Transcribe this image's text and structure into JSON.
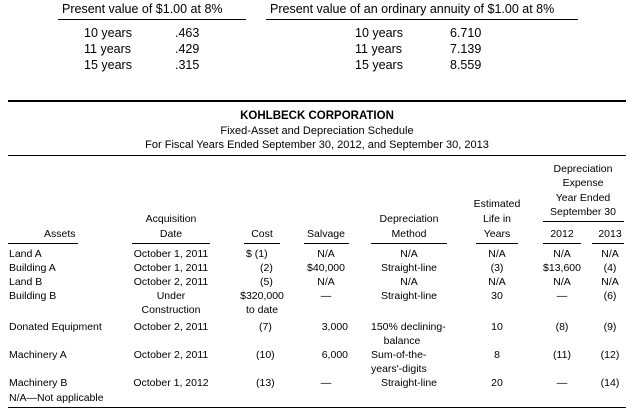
{
  "pv_table": {
    "title": "Present value of $1.00 at 8%",
    "rows": [
      {
        "years": "10 years",
        "value": ".463"
      },
      {
        "years": "11 years",
        "value": ".429"
      },
      {
        "years": "15 years",
        "value": ".315"
      }
    ]
  },
  "annuity_table": {
    "title": "Present value of an ordinary annuity of $1.00 at 8%",
    "rows": [
      {
        "years": "10 years",
        "value": "6.710"
      },
      {
        "years": "11 years",
        "value": "7.139"
      },
      {
        "years": "15 years",
        "value": "8.559"
      }
    ]
  },
  "schedule": {
    "company": "KOHLBECK CORPORATION",
    "title": "Fixed-Asset and Depreciation Schedule",
    "period": "For Fiscal Years Ended September 30, 2012, and September 30, 2013",
    "headers": {
      "assets": "Assets",
      "acq_1": "Acquisition",
      "acq_2": "Date",
      "cost": "Cost",
      "salvage": "Salvage",
      "method_1": "Depreciation",
      "method_2": "Method",
      "life_1": "Estimated",
      "life_2": "Life in",
      "life_3": "Years",
      "dep_1": "Depreciation",
      "dep_2": "Expense",
      "dep_3": "Year Ended",
      "dep_4": "September 30",
      "y2012": "2012",
      "y2013": "2013"
    },
    "rows": [
      {
        "asset": "Land A",
        "date": "October 1, 2011",
        "cost": "$ (1)",
        "salvage": "N/A",
        "method": "N/A",
        "life": "N/A",
        "d2012": "N/A",
        "d2013": "N/A"
      },
      {
        "asset": "Building A",
        "date": "October 1, 2011",
        "cost": "(2)",
        "salvage": "$40,000",
        "method": "Straight-line",
        "life": "(3)",
        "d2012": "$13,600",
        "d2013": "(4)"
      },
      {
        "asset": "Land B",
        "date": "October 2, 2011",
        "cost": "(5)",
        "salvage": "N/A",
        "method": "N/A",
        "life": "N/A",
        "d2012": "N/A",
        "d2013": "N/A"
      },
      {
        "asset": "Building B",
        "date_1": "Under",
        "date_2": "Construction",
        "cost_1": "$320,000",
        "cost_2": "to date",
        "salvage": "—",
        "method": "Straight-line",
        "life": "30",
        "d2012": "—",
        "d2013": "(6)"
      },
      {
        "asset": "Donated Equipment",
        "date": "October 2, 2011",
        "cost": "(7)",
        "salvage": "3,000",
        "method_1": "150% declining-",
        "method_2": "balance",
        "life": "10",
        "d2012": "(8)",
        "d2013": "(9)"
      },
      {
        "asset": "Machinery A",
        "date": "October 2, 2011",
        "cost": "(10)",
        "salvage": "6,000",
        "method_1": "Sum-of-the-",
        "method_2": "years'-digits",
        "life": "8",
        "d2012": "(11)",
        "d2013": "(12)"
      },
      {
        "asset": "Machinery B",
        "date": "October 1, 2012",
        "cost": "(13)",
        "salvage": "—",
        "method": "Straight-line",
        "life": "20",
        "d2012": "—",
        "d2013": "(14)"
      }
    ],
    "footnote": "N/A—Not applicable"
  }
}
